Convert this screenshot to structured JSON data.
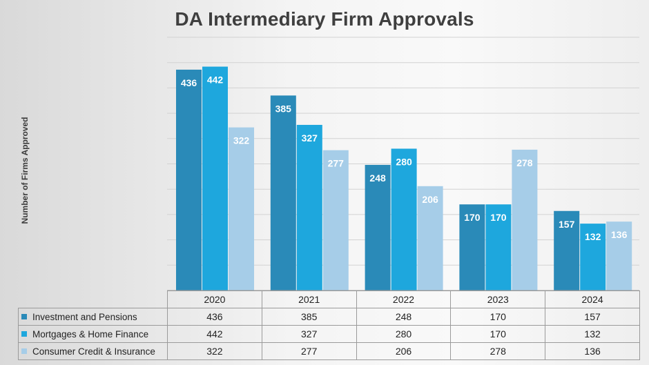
{
  "chart_data": {
    "type": "bar",
    "title": "DA Intermediary Firm Approvals",
    "xlabel": "",
    "ylabel": "Number of Firms Approved",
    "categories": [
      "2020",
      "2021",
      "2022",
      "2023",
      "2024"
    ],
    "series": [
      {
        "name": "Investment and Pensions",
        "color": "#2a8ab8",
        "values": [
          436,
          385,
          248,
          170,
          157
        ]
      },
      {
        "name": "Mortgages & Home Finance",
        "color": "#1ea7dd",
        "values": [
          442,
          327,
          280,
          170,
          132
        ]
      },
      {
        "name": "Consumer Credit & Insurance",
        "color": "#a6cde8",
        "values": [
          322,
          277,
          206,
          278,
          136
        ]
      }
    ],
    "ylim": [
      0,
      500
    ],
    "y_tick_step": 50,
    "y_tick_labels_shown": false,
    "grid": true,
    "data_labels": true,
    "legend": "data-table-below"
  }
}
